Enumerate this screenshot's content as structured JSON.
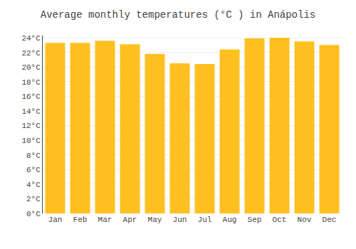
{
  "chart_data": {
    "type": "bar",
    "title": "Average monthly temperatures (°C ) in Anápolis",
    "categories": [
      "Jan",
      "Feb",
      "Mar",
      "Apr",
      "May",
      "Jun",
      "Jul",
      "Aug",
      "Sep",
      "Oct",
      "Nov",
      "Dec"
    ],
    "values": [
      23.3,
      23.3,
      23.6,
      23.1,
      21.8,
      20.5,
      20.4,
      22.4,
      23.9,
      24.0,
      23.5,
      23.0
    ],
    "color": "#FFC020",
    "ylim": [
      0,
      24.3
    ],
    "yticks": [
      {
        "value": 0,
        "label": "0°C"
      },
      {
        "value": 2,
        "label": "2°C"
      },
      {
        "value": 4,
        "label": "4°C"
      },
      {
        "value": 6,
        "label": "6°C"
      },
      {
        "value": 8,
        "label": "8°C"
      },
      {
        "value": 10,
        "label": "10°C"
      },
      {
        "value": 12,
        "label": "12°C"
      },
      {
        "value": 14,
        "label": "14°C"
      },
      {
        "value": 16,
        "label": "16°C"
      },
      {
        "value": 18,
        "label": "18°C"
      },
      {
        "value": 20,
        "label": "20°C"
      },
      {
        "value": 22,
        "label": "22°C"
      },
      {
        "value": 24,
        "label": "24°C"
      }
    ],
    "grid": true
  }
}
